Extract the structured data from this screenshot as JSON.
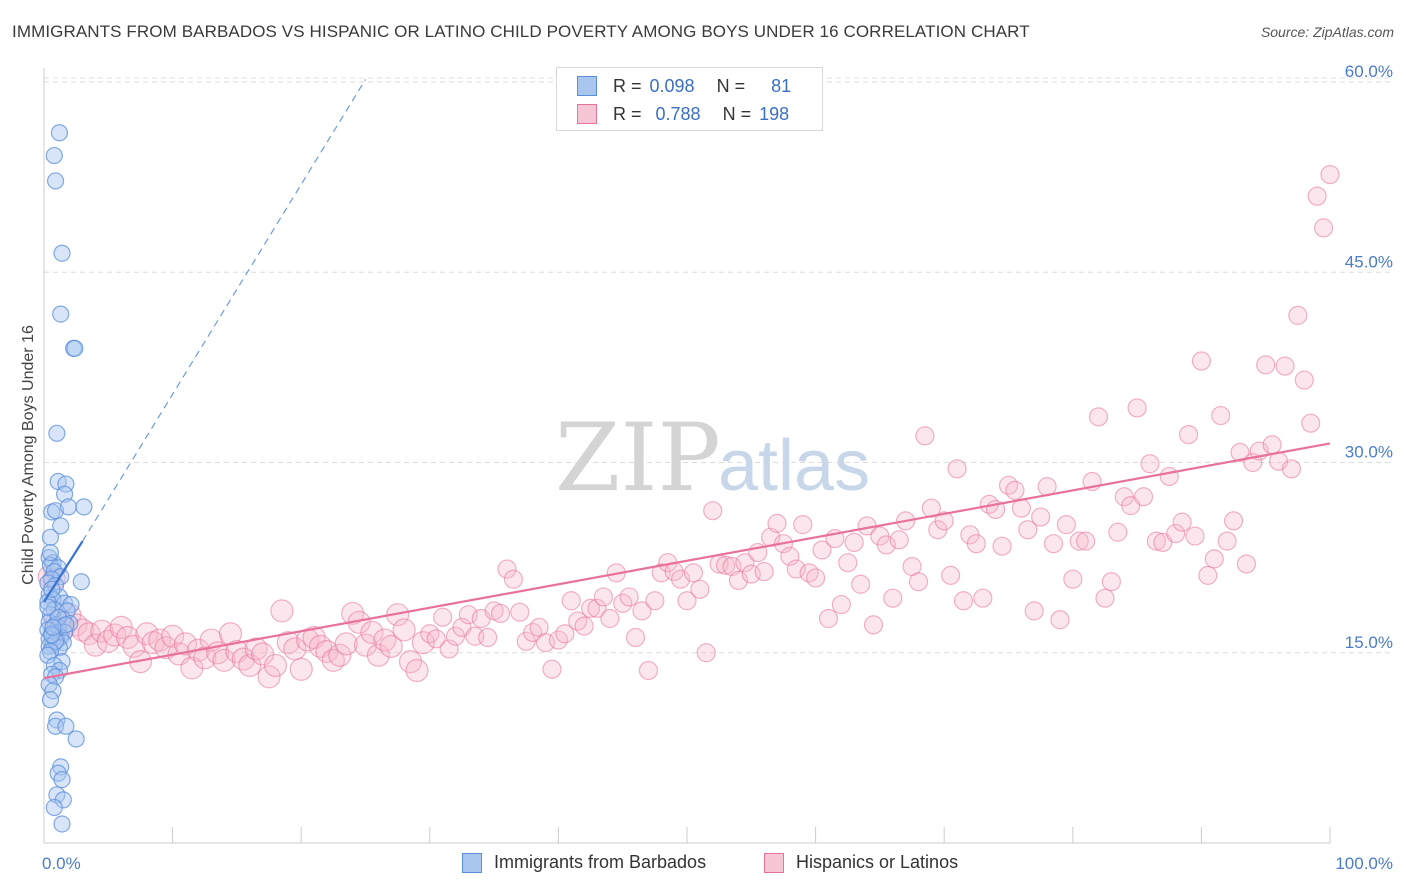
{
  "title": "IMMIGRANTS FROM BARBADOS VS HISPANIC OR LATINO CHILD POVERTY AMONG BOYS UNDER 16 CORRELATION CHART",
  "source": "Source: ZipAtlas.com",
  "watermark": {
    "zip": "ZIP",
    "atlas": "atlas"
  },
  "legend": {
    "rows": [
      {
        "r_label": "R =",
        "r_value": "0.098",
        "n_label": "N =",
        "n_value": "81"
      },
      {
        "r_label": "R =",
        "r_value": "0.788",
        "n_label": "N =",
        "n_value": "198"
      }
    ]
  },
  "bottom_legend": {
    "series_a": "Immigrants from Barbados",
    "series_b": "Hispanics or Latinos"
  },
  "colors": {
    "blue": "#5b8fdc",
    "blue_fill": "#a9c6ef",
    "pink": "#e8729a",
    "pink_fill": "#f5b8cb",
    "tick": "#4a7cc9"
  },
  "chart_data": {
    "type": "scatter",
    "title": "IMMIGRANTS FROM BARBADOS VS HISPANIC OR LATINO CHILD POVERTY AMONG BOYS UNDER 16 CORRELATION CHART",
    "xlabel": "",
    "ylabel": "Child Poverty Among Boys Under 16",
    "xlim": [
      0,
      100
    ],
    "ylim": [
      0,
      63
    ],
    "x_tick_labels": [
      "0.0%",
      "100.0%"
    ],
    "y_ticks": [
      15,
      30,
      45,
      60
    ],
    "y_tick_labels": [
      "15.0%",
      "30.0%",
      "45.0%",
      "60.0%"
    ],
    "grid": true,
    "series": [
      {
        "name": "Immigrants from Barbados",
        "R": 0.098,
        "N": 81,
        "trend": {
          "x0": 0.0,
          "y0": 19.0,
          "x1": 3.0,
          "y1": 23.8
        },
        "trend_extended": {
          "x0": 3.0,
          "y0": 23.8,
          "x1": 25.0,
          "y1": 60.2
        },
        "points": [
          [
            1.2,
            56.0
          ],
          [
            0.8,
            54.2
          ],
          [
            0.9,
            52.2
          ],
          [
            1.4,
            46.5
          ],
          [
            1.3,
            41.7
          ],
          [
            2.3,
            39.0
          ],
          [
            2.4,
            39.0
          ],
          [
            1.0,
            32.3
          ],
          [
            1.1,
            28.5
          ],
          [
            1.7,
            28.3
          ],
          [
            1.6,
            27.5
          ],
          [
            0.6,
            26.1
          ],
          [
            0.9,
            26.2
          ],
          [
            1.9,
            26.5
          ],
          [
            3.1,
            26.5
          ],
          [
            1.3,
            25.0
          ],
          [
            0.5,
            24.1
          ],
          [
            0.4,
            22.5
          ],
          [
            0.7,
            22.1
          ],
          [
            0.5,
            21.9
          ],
          [
            1.1,
            21.7
          ],
          [
            0.8,
            21.4
          ],
          [
            1.3,
            21.0
          ],
          [
            0.6,
            20.8
          ],
          [
            0.3,
            20.5
          ],
          [
            2.9,
            20.6
          ],
          [
            0.9,
            20.3
          ],
          [
            0.4,
            19.6
          ],
          [
            1.2,
            19.4
          ],
          [
            0.7,
            19.2
          ],
          [
            0.3,
            19.0
          ],
          [
            1.6,
            18.9
          ],
          [
            2.1,
            18.8
          ],
          [
            0.8,
            18.4
          ],
          [
            1.8,
            18.3
          ],
          [
            0.5,
            18.0
          ],
          [
            1.5,
            17.6
          ],
          [
            0.4,
            17.4
          ],
          [
            2.0,
            17.3
          ],
          [
            0.9,
            17.2
          ],
          [
            1.1,
            17.0
          ],
          [
            0.3,
            16.8
          ],
          [
            1.6,
            16.6
          ],
          [
            0.6,
            16.5
          ],
          [
            0.8,
            16.3
          ],
          [
            1.3,
            16.2
          ],
          [
            0.4,
            16.1
          ],
          [
            1.0,
            16.0
          ],
          [
            1.5,
            15.8
          ],
          [
            0.7,
            15.6
          ],
          [
            0.4,
            15.5
          ],
          [
            1.2,
            15.4
          ],
          [
            0.9,
            15.9
          ],
          [
            0.5,
            15.1
          ],
          [
            0.3,
            14.8
          ],
          [
            1.4,
            14.3
          ],
          [
            0.8,
            14.0
          ],
          [
            1.2,
            13.6
          ],
          [
            0.6,
            13.3
          ],
          [
            0.9,
            13.1
          ],
          [
            0.4,
            12.5
          ],
          [
            0.7,
            12.0
          ],
          [
            0.5,
            11.3
          ],
          [
            1.0,
            9.7
          ],
          [
            0.9,
            9.2
          ],
          [
            1.7,
            9.2
          ],
          [
            2.5,
            8.2
          ],
          [
            1.3,
            6.0
          ],
          [
            1.1,
            5.5
          ],
          [
            1.4,
            5.0
          ],
          [
            1.0,
            3.8
          ],
          [
            1.5,
            3.4
          ],
          [
            0.8,
            2.8
          ],
          [
            1.4,
            1.5
          ],
          [
            0.6,
            16.4
          ],
          [
            1.1,
            17.8
          ],
          [
            0.3,
            18.6
          ],
          [
            0.6,
            20.0
          ],
          [
            1.7,
            17.2
          ],
          [
            0.5,
            22.9
          ],
          [
            0.7,
            17.0
          ]
        ]
      },
      {
        "name": "Hispanics or Latinos",
        "R": 0.788,
        "N": 198,
        "trend": {
          "x0": 0.0,
          "y0": 13.0,
          "x1": 100.0,
          "y1": 31.5
        },
        "points": [
          [
            0.4,
            21.0
          ],
          [
            0.8,
            20.8
          ],
          [
            1.0,
            17.5
          ],
          [
            1.5,
            16.9
          ],
          [
            2.0,
            18.0
          ],
          [
            2.5,
            17.2
          ],
          [
            3.0,
            16.8
          ],
          [
            3.5,
            16.5
          ],
          [
            4.0,
            15.6
          ],
          [
            4.5,
            16.7
          ],
          [
            5.0,
            15.9
          ],
          [
            5.5,
            16.4
          ],
          [
            6.0,
            17.0
          ],
          [
            6.5,
            16.2
          ],
          [
            7.0,
            15.5
          ],
          [
            7.5,
            14.3
          ],
          [
            8.0,
            16.5
          ],
          [
            8.5,
            15.8
          ],
          [
            9.0,
            16.0
          ],
          [
            9.5,
            15.4
          ],
          [
            10.0,
            16.3
          ],
          [
            10.5,
            14.9
          ],
          [
            11.0,
            15.7
          ],
          [
            11.5,
            13.8
          ],
          [
            12.0,
            15.2
          ],
          [
            12.5,
            14.6
          ],
          [
            13.0,
            16.0
          ],
          [
            13.5,
            15.0
          ],
          [
            14.0,
            14.4
          ],
          [
            14.5,
            16.5
          ],
          [
            15.0,
            15.1
          ],
          [
            15.5,
            14.5
          ],
          [
            16.0,
            14.0
          ],
          [
            16.5,
            15.3
          ],
          [
            17.0,
            14.9
          ],
          [
            17.5,
            13.1
          ],
          [
            18.0,
            14.0
          ],
          [
            18.5,
            18.3
          ],
          [
            19.0,
            15.8
          ],
          [
            19.5,
            15.3
          ],
          [
            20.0,
            13.7
          ],
          [
            20.5,
            16.0
          ],
          [
            21.0,
            16.2
          ],
          [
            21.5,
            15.5
          ],
          [
            22.0,
            15.1
          ],
          [
            22.5,
            14.4
          ],
          [
            23.0,
            14.8
          ],
          [
            23.5,
            15.7
          ],
          [
            24.0,
            18.1
          ],
          [
            24.5,
            17.4
          ],
          [
            25.0,
            15.6
          ],
          [
            25.5,
            16.6
          ],
          [
            26.0,
            14.8
          ],
          [
            26.5,
            16.0
          ],
          [
            27.0,
            15.5
          ],
          [
            27.5,
            18.0
          ],
          [
            28.0,
            16.8
          ],
          [
            28.5,
            14.3
          ],
          [
            29.0,
            13.6
          ],
          [
            29.5,
            15.8
          ],
          [
            30.0,
            16.5
          ],
          [
            30.5,
            16.1
          ],
          [
            31.0,
            17.8
          ],
          [
            31.5,
            15.3
          ],
          [
            32.0,
            16.3
          ],
          [
            32.5,
            17.0
          ],
          [
            33.0,
            18.0
          ],
          [
            33.5,
            16.3
          ],
          [
            34.0,
            17.7
          ],
          [
            34.5,
            16.2
          ],
          [
            35.0,
            18.3
          ],
          [
            35.5,
            18.1
          ],
          [
            36.0,
            21.6
          ],
          [
            36.5,
            20.8
          ],
          [
            37.0,
            18.2
          ],
          [
            37.5,
            15.9
          ],
          [
            38.0,
            16.6
          ],
          [
            38.5,
            17.0
          ],
          [
            39.0,
            15.8
          ],
          [
            39.5,
            13.7
          ],
          [
            40.0,
            16.0
          ],
          [
            40.5,
            16.5
          ],
          [
            41.0,
            19.1
          ],
          [
            41.5,
            17.5
          ],
          [
            42.0,
            17.1
          ],
          [
            42.5,
            18.5
          ],
          [
            43.0,
            18.5
          ],
          [
            43.5,
            19.4
          ],
          [
            44.0,
            17.7
          ],
          [
            44.5,
            21.3
          ],
          [
            45.0,
            18.9
          ],
          [
            45.5,
            19.4
          ],
          [
            46.0,
            16.2
          ],
          [
            46.5,
            18.3
          ],
          [
            47.0,
            13.6
          ],
          [
            47.5,
            19.1
          ],
          [
            48.0,
            21.3
          ],
          [
            48.5,
            22.1
          ],
          [
            49.0,
            21.4
          ],
          [
            49.5,
            20.8
          ],
          [
            50.0,
            19.1
          ],
          [
            50.5,
            21.3
          ],
          [
            51.0,
            20.0
          ],
          [
            51.5,
            15.0
          ],
          [
            52.0,
            26.2
          ],
          [
            52.5,
            22.0
          ],
          [
            53.0,
            21.9
          ],
          [
            53.5,
            21.8
          ],
          [
            54.0,
            20.7
          ],
          [
            54.5,
            22.1
          ],
          [
            55.0,
            21.2
          ],
          [
            55.5,
            22.9
          ],
          [
            56.0,
            21.4
          ],
          [
            56.5,
            24.1
          ],
          [
            57.0,
            25.2
          ],
          [
            57.5,
            23.6
          ],
          [
            58.0,
            22.6
          ],
          [
            58.5,
            21.6
          ],
          [
            59.0,
            25.1
          ],
          [
            59.5,
            21.3
          ],
          [
            60.0,
            20.9
          ],
          [
            60.5,
            23.1
          ],
          [
            61.0,
            17.7
          ],
          [
            61.5,
            24.0
          ],
          [
            62.0,
            18.8
          ],
          [
            62.5,
            22.1
          ],
          [
            63.0,
            23.7
          ],
          [
            63.5,
            20.4
          ],
          [
            64.0,
            25.0
          ],
          [
            64.5,
            17.2
          ],
          [
            65.0,
            24.2
          ],
          [
            65.5,
            23.5
          ],
          [
            66.0,
            19.3
          ],
          [
            66.5,
            23.9
          ],
          [
            67.0,
            25.4
          ],
          [
            67.5,
            21.8
          ],
          [
            68.0,
            20.6
          ],
          [
            68.5,
            32.1
          ],
          [
            69.0,
            26.4
          ],
          [
            69.5,
            24.7
          ],
          [
            70.0,
            25.4
          ],
          [
            70.5,
            21.1
          ],
          [
            71.0,
            29.5
          ],
          [
            71.5,
            19.1
          ],
          [
            72.0,
            24.3
          ],
          [
            72.5,
            23.6
          ],
          [
            73.0,
            19.3
          ],
          [
            73.5,
            26.7
          ],
          [
            74.0,
            26.3
          ],
          [
            74.5,
            23.4
          ],
          [
            75.0,
            28.2
          ],
          [
            75.5,
            27.8
          ],
          [
            76.0,
            26.4
          ],
          [
            76.5,
            24.7
          ],
          [
            77.0,
            18.3
          ],
          [
            77.5,
            25.7
          ],
          [
            78.0,
            28.1
          ],
          [
            78.5,
            23.6
          ],
          [
            79.0,
            17.6
          ],
          [
            79.5,
            25.1
          ],
          [
            80.0,
            20.8
          ],
          [
            80.5,
            23.8
          ],
          [
            81.0,
            23.8
          ],
          [
            81.5,
            28.5
          ],
          [
            82.0,
            33.6
          ],
          [
            82.5,
            19.3
          ],
          [
            83.0,
            20.6
          ],
          [
            83.5,
            24.5
          ],
          [
            84.0,
            27.3
          ],
          [
            84.5,
            26.6
          ],
          [
            85.0,
            34.3
          ],
          [
            85.5,
            27.3
          ],
          [
            86.0,
            29.9
          ],
          [
            86.5,
            23.8
          ],
          [
            87.0,
            23.7
          ],
          [
            87.5,
            28.9
          ],
          [
            88.0,
            24.4
          ],
          [
            88.5,
            25.3
          ],
          [
            89.0,
            32.2
          ],
          [
            89.5,
            24.2
          ],
          [
            90.0,
            38.0
          ],
          [
            90.5,
            21.1
          ],
          [
            91.0,
            22.4
          ],
          [
            91.5,
            33.7
          ],
          [
            92.0,
            23.8
          ],
          [
            92.5,
            25.4
          ],
          [
            93.0,
            30.8
          ],
          [
            93.5,
            22.0
          ],
          [
            94.0,
            30.0
          ],
          [
            94.5,
            30.9
          ],
          [
            95.0,
            37.7
          ],
          [
            95.5,
            31.4
          ],
          [
            96.0,
            30.1
          ],
          [
            96.5,
            37.6
          ],
          [
            97.0,
            29.5
          ],
          [
            97.5,
            41.6
          ],
          [
            98.0,
            36.5
          ],
          [
            98.5,
            33.1
          ],
          [
            99.0,
            51.0
          ],
          [
            99.5,
            48.5
          ],
          [
            100.0,
            52.7
          ]
        ]
      }
    ]
  }
}
